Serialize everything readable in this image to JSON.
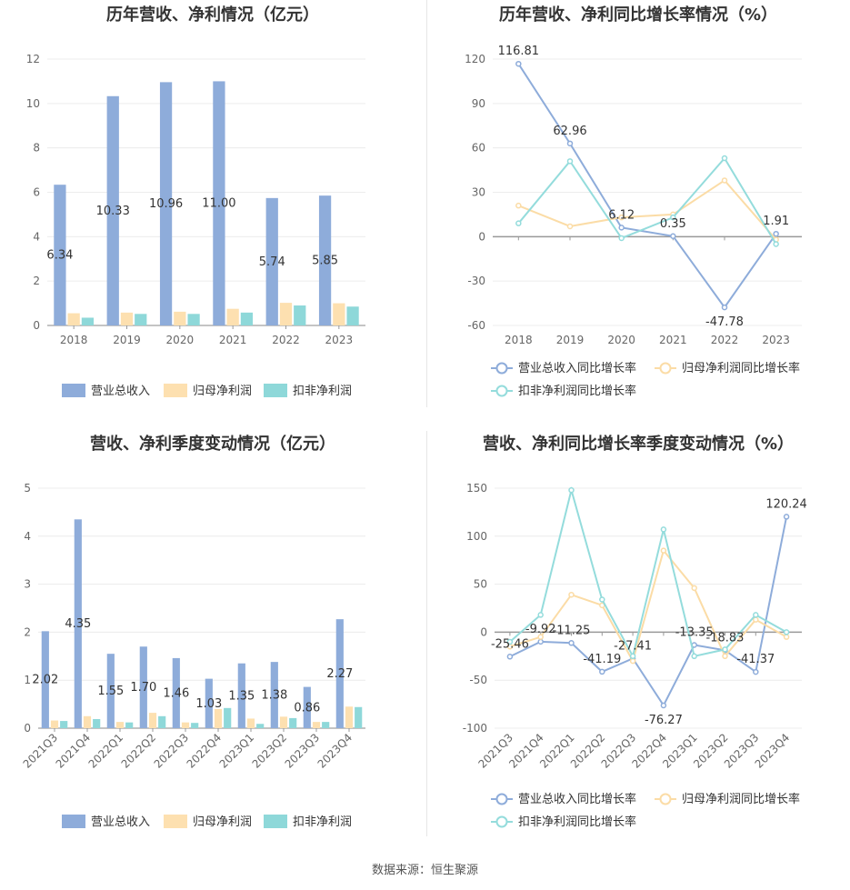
{
  "footer": {
    "source": "数据来源：恒生聚源"
  },
  "colors": {
    "revenue": "#8eacda",
    "net_profit": "#fde0b0",
    "deducted_profit": "#8ed8d9",
    "revenue_line": "#8eacda",
    "net_line": "#fbdca6",
    "deducted_line": "#94dcdc"
  },
  "chart_data": [
    {
      "type": "bar",
      "title": "历年营收、净利情况（亿元）",
      "categories": [
        "2018",
        "2019",
        "2020",
        "2021",
        "2022",
        "2023"
      ],
      "series": [
        {
          "name": "营业总收入",
          "values": [
            6.34,
            10.33,
            10.96,
            11.0,
            5.74,
            5.85
          ],
          "labels": [
            "6.34",
            "10.33",
            "10.96",
            "11.00",
            "5.74",
            "5.85"
          ]
        },
        {
          "name": "归母净利润",
          "values": [
            0.55,
            0.58,
            0.62,
            0.75,
            1.02,
            1.0
          ]
        },
        {
          "name": "扣非净利润",
          "values": [
            0.35,
            0.52,
            0.52,
            0.58,
            0.9,
            0.85
          ]
        }
      ],
      "yticks": [
        "0",
        "2",
        "4",
        "6",
        "8",
        "10",
        "12"
      ],
      "ylim": [
        0,
        12
      ],
      "legend": "bottom"
    },
    {
      "type": "line",
      "title": "历年营收、净利同比增长率情况（%）",
      "categories": [
        "2018",
        "2019",
        "2020",
        "2021",
        "2022",
        "2023"
      ],
      "series": [
        {
          "name": "营业总收入同比增长率",
          "values": [
            116.81,
            62.96,
            6.12,
            0.35,
            -47.78,
            1.91
          ],
          "labels": [
            "116.81",
            "62.96",
            "6.12",
            "0.35",
            "-47.78",
            "1.91"
          ]
        },
        {
          "name": "归母净利润同比增长率",
          "values": [
            21,
            7,
            13,
            15,
            38,
            -2
          ]
        },
        {
          "name": "扣非净利润同比增长率",
          "values": [
            9,
            51,
            -1,
            13,
            53,
            -5
          ]
        }
      ],
      "yticks": [
        "-60",
        "-30",
        "0",
        "30",
        "60",
        "90",
        "120"
      ],
      "ylim": [
        -60,
        120
      ],
      "legend": "bottom"
    },
    {
      "type": "bar",
      "title": "营收、净利季度变动情况（亿元）",
      "categories": [
        "2021Q3",
        "2021Q4",
        "2022Q1",
        "2022Q2",
        "2022Q3",
        "2022Q4",
        "2023Q1",
        "2023Q2",
        "2023Q3",
        "2023Q4"
      ],
      "series": [
        {
          "name": "营业总收入",
          "values": [
            2.02,
            4.35,
            1.55,
            1.7,
            1.46,
            1.03,
            1.35,
            1.38,
            0.86,
            2.27
          ],
          "labels": [
            "2.02",
            "4.35",
            "1.55",
            "1.70",
            "1.46",
            "1.03",
            "1.35",
            "1.38",
            "0.86",
            "2.27"
          ]
        },
        {
          "name": "归母净利润",
          "values": [
            0.16,
            0.25,
            0.13,
            0.32,
            0.12,
            0.4,
            0.2,
            0.24,
            0.13,
            0.45
          ]
        },
        {
          "name": "扣非净利润",
          "values": [
            0.15,
            0.19,
            0.12,
            0.25,
            0.11,
            0.42,
            0.09,
            0.21,
            0.13,
            0.44
          ]
        }
      ],
      "yticks": [
        "0",
        "1",
        "2",
        "3",
        "4",
        "5"
      ],
      "ylim": [
        0,
        5
      ],
      "legend": "bottom"
    },
    {
      "type": "line",
      "title": "营收、净利同比增长率季度变动情况（%）",
      "categories": [
        "2021Q3",
        "2021Q4",
        "2022Q1",
        "2022Q2",
        "2022Q3",
        "2022Q4",
        "2023Q1",
        "2023Q2",
        "2023Q3",
        "2023Q4"
      ],
      "series": [
        {
          "name": "营业总收入同比增长率",
          "values": [
            -25.46,
            -9.92,
            -11.25,
            -41.19,
            -27.41,
            -76.27,
            -13.35,
            -18.83,
            -41.37,
            120.24
          ],
          "labels": [
            "-25.46",
            "-9.92",
            "-11.25",
            "-41.19",
            "-27.41",
            "-76.27",
            "-13.35",
            "-18.83",
            "-41.37",
            "120.24"
          ]
        },
        {
          "name": "归母净利润同比增长率",
          "values": [
            -15,
            -5,
            39,
            28,
            -30,
            85,
            46,
            -25,
            13,
            -5
          ]
        },
        {
          "name": "扣非净利润同比增长率",
          "values": [
            -10,
            18,
            148,
            34,
            -25,
            107,
            -25,
            -18,
            18,
            0
          ]
        }
      ],
      "yticks": [
        "-100",
        "-50",
        "0",
        "50",
        "100",
        "150"
      ],
      "ylim": [
        -100,
        150
      ],
      "legend": "bottom"
    }
  ]
}
